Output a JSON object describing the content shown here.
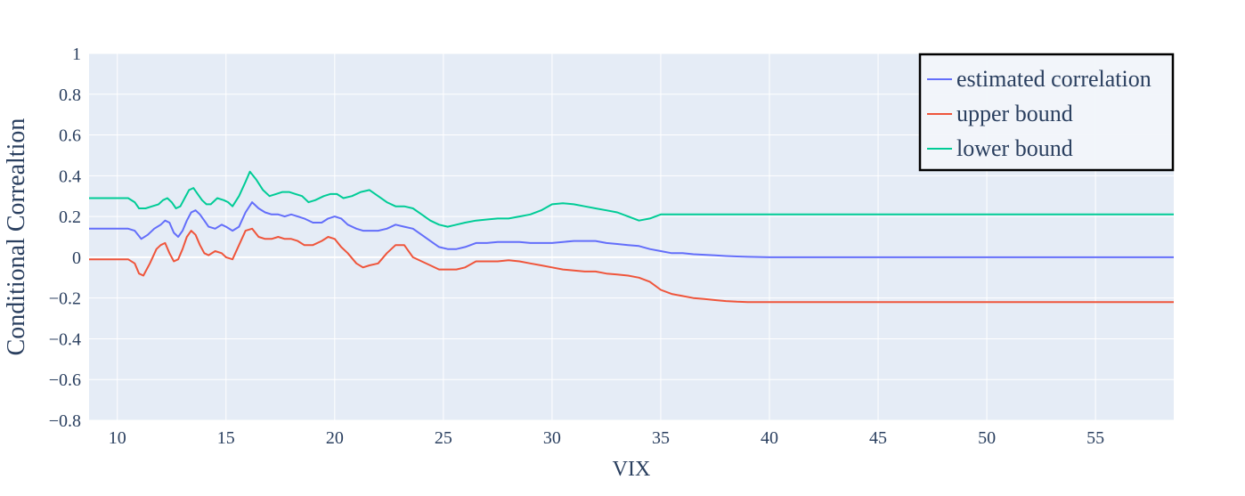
{
  "chart_data": {
    "type": "line",
    "title": "",
    "xlabel": "VIX",
    "ylabel": "Conditional Correaltion",
    "xlim": [
      8.7,
      58.6
    ],
    "ylim": [
      -0.8,
      1.0
    ],
    "xticks": [
      10,
      15,
      20,
      25,
      30,
      35,
      40,
      45,
      50,
      55
    ],
    "xtick_labels": [
      "10",
      "15",
      "20",
      "25",
      "30",
      "35",
      "40",
      "45",
      "50",
      "55"
    ],
    "yticks": [
      1,
      0.8,
      0.6,
      0.4,
      0.2,
      0,
      -0.2,
      -0.4,
      -0.6,
      -0.8
    ],
    "ytick_labels": [
      "1",
      "0.8",
      "0.6",
      "0.4",
      "0.2",
      "0",
      "−0.2",
      "−0.4",
      "−0.6",
      "−0.8"
    ],
    "grid": true,
    "legend_position": "top-right",
    "series": [
      {
        "name": "estimated correlation",
        "color": "#636efa",
        "x": [
          8.7,
          10.5,
          10.8,
          11.1,
          11.4,
          11.7,
          12.0,
          12.2,
          12.4,
          12.6,
          12.8,
          13.0,
          13.2,
          13.4,
          13.6,
          13.8,
          14.0,
          14.2,
          14.5,
          14.8,
          15.0,
          15.3,
          15.6,
          15.9,
          16.2,
          16.5,
          16.8,
          17.1,
          17.4,
          17.7,
          18.0,
          18.3,
          18.6,
          19.0,
          19.4,
          19.7,
          20.0,
          20.3,
          20.6,
          21.0,
          21.3,
          21.6,
          22.0,
          22.4,
          22.8,
          23.2,
          23.6,
          24.0,
          24.4,
          24.8,
          25.2,
          25.6,
          26.0,
          26.5,
          27.0,
          27.5,
          28.0,
          28.5,
          29.0,
          29.5,
          30.0,
          30.5,
          31.0,
          31.5,
          32.0,
          32.5,
          33.0,
          33.5,
          34.0,
          34.5,
          35.0,
          35.5,
          36.0,
          36.5,
          37.0,
          37.5,
          38.0,
          38.5,
          39.0,
          40.0,
          42.0,
          45.0,
          50.0,
          55.0,
          58.6
        ],
        "y": [
          0.14,
          0.14,
          0.13,
          0.09,
          0.11,
          0.14,
          0.16,
          0.18,
          0.17,
          0.12,
          0.1,
          0.13,
          0.18,
          0.22,
          0.23,
          0.21,
          0.18,
          0.15,
          0.14,
          0.16,
          0.15,
          0.13,
          0.15,
          0.22,
          0.27,
          0.24,
          0.22,
          0.21,
          0.21,
          0.2,
          0.21,
          0.2,
          0.19,
          0.17,
          0.17,
          0.19,
          0.2,
          0.19,
          0.16,
          0.14,
          0.13,
          0.13,
          0.13,
          0.14,
          0.16,
          0.15,
          0.14,
          0.11,
          0.08,
          0.05,
          0.04,
          0.04,
          0.05,
          0.07,
          0.07,
          0.075,
          0.075,
          0.075,
          0.07,
          0.07,
          0.07,
          0.075,
          0.08,
          0.08,
          0.08,
          0.07,
          0.065,
          0.06,
          0.055,
          0.04,
          0.03,
          0.02,
          0.02,
          0.015,
          0.012,
          0.009,
          0.006,
          0.004,
          0.002,
          0.0,
          0.0,
          0.0,
          0.0,
          0.0,
          0.0
        ]
      },
      {
        "name": "upper bound",
        "color": "#ef553b",
        "x": [
          8.7,
          10.5,
          10.8,
          11.0,
          11.2,
          11.5,
          11.8,
          12.0,
          12.2,
          12.4,
          12.6,
          12.8,
          13.0,
          13.2,
          13.4,
          13.6,
          13.8,
          14.0,
          14.2,
          14.5,
          14.8,
          15.0,
          15.3,
          15.6,
          15.9,
          16.2,
          16.5,
          16.8,
          17.1,
          17.4,
          17.7,
          18.0,
          18.3,
          18.6,
          19.0,
          19.4,
          19.7,
          20.0,
          20.3,
          20.6,
          21.0,
          21.3,
          21.6,
          22.0,
          22.4,
          22.8,
          23.2,
          23.6,
          24.0,
          24.4,
          24.8,
          25.2,
          25.6,
          26.0,
          26.5,
          27.0,
          27.5,
          28.0,
          28.5,
          29.0,
          29.5,
          30.0,
          30.5,
          31.0,
          31.5,
          32.0,
          32.5,
          33.0,
          33.5,
          34.0,
          34.5,
          35.0,
          35.5,
          36.0,
          36.5,
          37.0,
          37.5,
          38.0,
          38.5,
          39.0,
          40.0,
          42.0,
          45.0,
          50.0,
          55.0,
          58.6
        ],
        "y": [
          -0.01,
          -0.01,
          -0.03,
          -0.08,
          -0.09,
          -0.03,
          0.04,
          0.06,
          0.07,
          0.02,
          -0.02,
          -0.01,
          0.04,
          0.1,
          0.13,
          0.11,
          0.06,
          0.02,
          0.01,
          0.03,
          0.02,
          0.0,
          -0.01,
          0.06,
          0.13,
          0.14,
          0.1,
          0.09,
          0.09,
          0.1,
          0.09,
          0.09,
          0.08,
          0.06,
          0.06,
          0.08,
          0.1,
          0.09,
          0.05,
          0.02,
          -0.03,
          -0.05,
          -0.04,
          -0.03,
          0.02,
          0.06,
          0.06,
          0.0,
          -0.02,
          -0.04,
          -0.06,
          -0.06,
          -0.06,
          -0.05,
          -0.02,
          -0.02,
          -0.02,
          -0.015,
          -0.02,
          -0.03,
          -0.04,
          -0.05,
          -0.06,
          -0.065,
          -0.07,
          -0.07,
          -0.08,
          -0.085,
          -0.09,
          -0.1,
          -0.12,
          -0.16,
          -0.18,
          -0.19,
          -0.2,
          -0.205,
          -0.21,
          -0.215,
          -0.218,
          -0.22,
          -0.22,
          -0.22,
          -0.22,
          -0.22,
          -0.22,
          -0.22
        ]
      },
      {
        "name": "lower bound",
        "color": "#00cc96",
        "x": [
          8.7,
          10.5,
          10.8,
          11.0,
          11.3,
          11.6,
          11.9,
          12.1,
          12.3,
          12.5,
          12.7,
          12.9,
          13.1,
          13.3,
          13.5,
          13.7,
          13.9,
          14.1,
          14.3,
          14.6,
          14.9,
          15.1,
          15.3,
          15.6,
          15.9,
          16.1,
          16.4,
          16.7,
          17.0,
          17.3,
          17.6,
          17.9,
          18.2,
          18.5,
          18.8,
          19.1,
          19.5,
          19.8,
          20.1,
          20.4,
          20.8,
          21.2,
          21.6,
          22.0,
          22.4,
          22.8,
          23.2,
          23.6,
          24.0,
          24.4,
          24.8,
          25.2,
          25.6,
          26.0,
          26.5,
          27.0,
          27.5,
          28.0,
          28.5,
          29.0,
          29.5,
          30.0,
          30.5,
          31.0,
          31.5,
          32.0,
          32.5,
          33.0,
          33.5,
          34.0,
          34.5,
          35.0,
          35.5,
          36.0,
          36.5,
          37.0,
          37.5,
          38.0,
          39.0,
          40.0,
          42.0,
          45.0,
          50.0,
          55.0,
          58.6
        ],
        "y": [
          0.29,
          0.29,
          0.27,
          0.24,
          0.24,
          0.25,
          0.26,
          0.28,
          0.29,
          0.27,
          0.24,
          0.25,
          0.29,
          0.33,
          0.34,
          0.31,
          0.28,
          0.26,
          0.26,
          0.29,
          0.28,
          0.27,
          0.25,
          0.3,
          0.37,
          0.42,
          0.38,
          0.33,
          0.3,
          0.31,
          0.32,
          0.32,
          0.31,
          0.3,
          0.27,
          0.28,
          0.3,
          0.31,
          0.31,
          0.29,
          0.3,
          0.32,
          0.33,
          0.3,
          0.27,
          0.25,
          0.25,
          0.24,
          0.21,
          0.18,
          0.16,
          0.15,
          0.16,
          0.17,
          0.18,
          0.185,
          0.19,
          0.19,
          0.2,
          0.21,
          0.23,
          0.26,
          0.265,
          0.26,
          0.25,
          0.24,
          0.23,
          0.22,
          0.2,
          0.18,
          0.19,
          0.21,
          0.21,
          0.21,
          0.21,
          0.21,
          0.21,
          0.21,
          0.21,
          0.21,
          0.21,
          0.21,
          0.21,
          0.21,
          0.21
        ]
      }
    ]
  }
}
